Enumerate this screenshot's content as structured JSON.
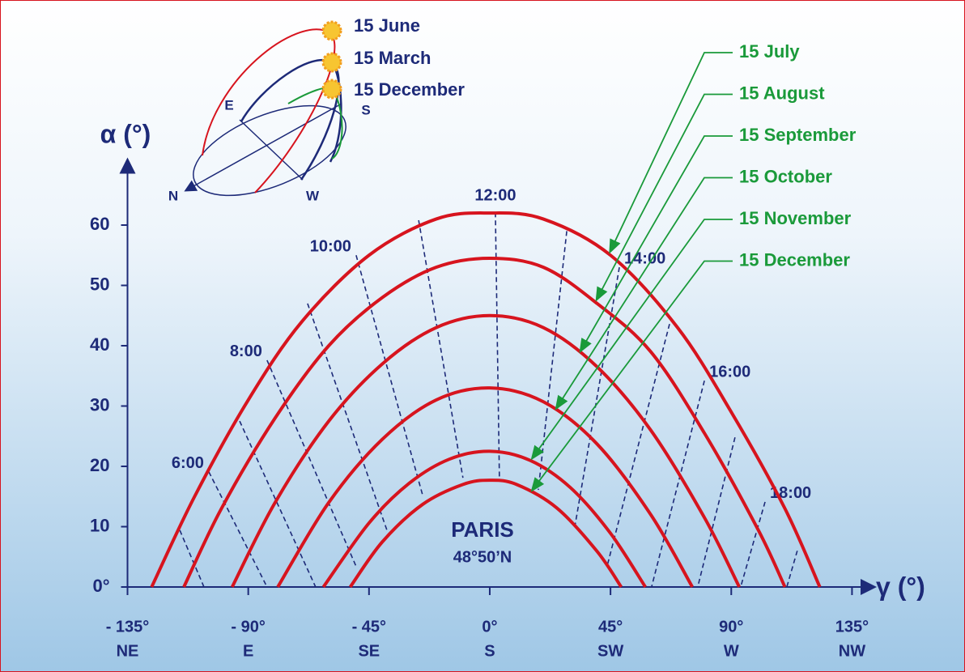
{
  "chart_data": {
    "type": "line",
    "y_axis_label": "α (°)",
    "x_axis_label": "γ (°)",
    "xlim": [
      -135,
      140
    ],
    "ylim": [
      0,
      70
    ],
    "xticks": [
      {
        "value": -135,
        "label": "- 135°"
      },
      {
        "value": -90,
        "label": "- 90°"
      },
      {
        "value": -45,
        "label": "- 45°"
      },
      {
        "value": 0,
        "label": "0°"
      },
      {
        "value": 45,
        "label": "45°"
      },
      {
        "value": 90,
        "label": "90°"
      },
      {
        "value": 135,
        "label": "135°"
      }
    ],
    "xtick_directions": [
      "NE",
      "E",
      "SE",
      "S",
      "SW",
      "W",
      "NW"
    ],
    "yticks": [
      {
        "value": 0,
        "label": "0°"
      },
      10,
      20,
      30,
      40,
      50,
      60
    ],
    "curve_color": "#d7141e",
    "label_color": "#1a9a3a",
    "hour_line_color": "#1d2a78",
    "series": [
      {
        "name": "15 July",
        "x": [
          -126,
          -110,
          -90,
          -70,
          -45,
          -20,
          0,
          20,
          45,
          70,
          90,
          110,
          123
        ],
        "values": [
          0,
          15,
          31,
          44,
          55,
          61,
          62,
          61,
          55,
          43,
          29,
          13,
          0
        ]
      },
      {
        "name": "15 August",
        "x": [
          -114,
          -100,
          -80,
          -60,
          -40,
          -20,
          0,
          20,
          40,
          60,
          80,
          100,
          110
        ],
        "values": [
          0,
          13,
          28,
          40,
          48,
          53,
          54.5,
          53,
          47,
          39,
          25.5,
          9.5,
          0
        ]
      },
      {
        "name": "15 September",
        "x": [
          -96,
          -80,
          -60,
          -40,
          -20,
          0,
          20,
          40,
          60,
          80,
          93
        ],
        "values": [
          0,
          14,
          27.5,
          37,
          43,
          45,
          43,
          36.5,
          26,
          11.5,
          0
        ]
      },
      {
        "name": "15 October",
        "x": [
          -79,
          -60,
          -40,
          -20,
          0,
          20,
          40,
          60,
          75.5
        ],
        "values": [
          0,
          14,
          24.5,
          31,
          33,
          30.7,
          23.7,
          12,
          0
        ]
      },
      {
        "name": "15 November",
        "x": [
          -62,
          -45,
          -30,
          -15,
          0,
          15,
          30,
          45,
          58
        ],
        "values": [
          0,
          10.6,
          17.2,
          21.2,
          22.5,
          21,
          16.5,
          8.9,
          0
        ]
      },
      {
        "name": "15 December",
        "x": [
          -52,
          -40,
          -25,
          -10,
          0,
          10,
          25,
          40,
          49
        ],
        "values": [
          0,
          7.5,
          13.7,
          17,
          17.7,
          17,
          13.1,
          5.9,
          0
        ]
      }
    ],
    "hour_lines": [
      {
        "x": [
          -115.5,
          -106.5
        ],
        "values": [
          9.4,
          0
        ]
      },
      {
        "label": "6:00",
        "x": [
          -104.7,
          -83
        ],
        "values": [
          19.1,
          0
        ]
      },
      {
        "x": [
          -93.2,
          -64.9
        ],
        "values": [
          27.5,
          0
        ]
      },
      {
        "label": "8:00",
        "x": [
          -83,
          -49.8
        ],
        "values": [
          37.6,
          3.4
        ]
      },
      {
        "x": [
          -67.9,
          -38.3
        ],
        "values": [
          47,
          9.4
        ]
      },
      {
        "label": "10:00",
        "x": [
          -49.8,
          -25
        ],
        "values": [
          55,
          15.2
        ]
      },
      {
        "x": [
          -26.5,
          -10
        ],
        "values": [
          60.8,
          18.1
        ]
      },
      {
        "label": "12:00",
        "x": [
          2.1,
          3.6
        ],
        "values": [
          62.1,
          17.9
        ]
      },
      {
        "x": [
          28.7,
          18.1
        ],
        "values": [
          59,
          16.1
        ]
      },
      {
        "label": "14:00",
        "x": [
          48.3,
          31.7
        ],
        "values": [
          53,
          10
        ]
      },
      {
        "x": [
          67,
          43.7
        ],
        "values": [
          43.6,
          3.4
        ]
      },
      {
        "label": "16:00",
        "x": [
          80,
          60.3
        ],
        "values": [
          34.2,
          0
        ]
      },
      {
        "x": [
          91.4,
          77.5
        ],
        "values": [
          24.8,
          0
        ]
      },
      {
        "label": "18:00",
        "x": [
          102.6,
          93.5
        ],
        "values": [
          14.1,
          0
        ]
      },
      {
        "x": [
          114.6,
          110.7
        ],
        "values": [
          6,
          0
        ]
      }
    ],
    "annotation": {
      "city": "PARIS",
      "latitude": "48°50’N"
    }
  },
  "inset": {
    "seasons": [
      "15 June",
      "15 March",
      "15 December"
    ],
    "directions": [
      "E",
      "S",
      "N",
      "W"
    ]
  }
}
